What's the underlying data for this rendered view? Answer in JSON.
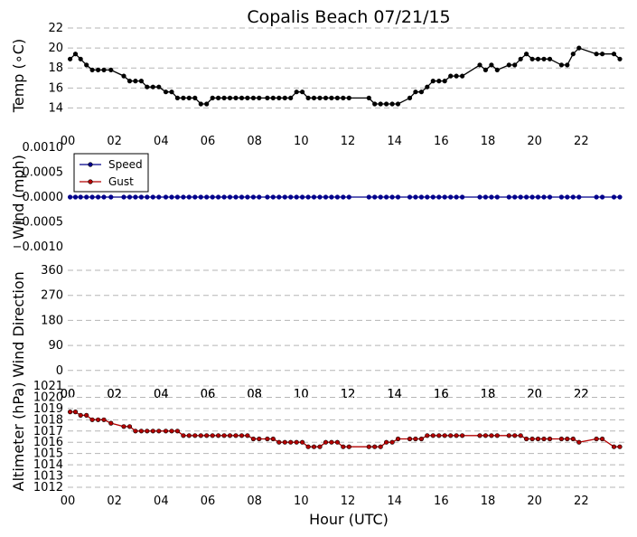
{
  "title": "Copalis Beach 07/21/15",
  "xlabel": "Hour (UTC)",
  "x_ticks": [
    "00",
    "02",
    "04",
    "06",
    "08",
    "10",
    "12",
    "14",
    "16",
    "18",
    "20",
    "22"
  ],
  "chart_data": [
    {
      "type": "line",
      "name": "temperature",
      "ylabel": "Temp (∘C)",
      "xlim": [
        0,
        24
      ],
      "ylim": [
        12.5,
        22
      ],
      "y_ticks": [
        "14",
        "16",
        "18",
        "20",
        "22"
      ],
      "grid": true,
      "series": [
        {
          "color": "#000000",
          "points": [
            [
              0.1,
              18.9
            ],
            [
              0.33,
              19.4
            ],
            [
              0.55,
              18.9
            ],
            [
              0.8,
              18.3
            ],
            [
              1.05,
              17.8
            ],
            [
              1.3,
              17.8
            ],
            [
              1.55,
              17.8
            ],
            [
              1.85,
              17.8
            ],
            [
              2.4,
              17.2
            ],
            [
              2.65,
              16.7
            ],
            [
              2.9,
              16.7
            ],
            [
              3.15,
              16.7
            ],
            [
              3.4,
              16.1
            ],
            [
              3.65,
              16.1
            ],
            [
              3.9,
              16.1
            ],
            [
              4.2,
              15.6
            ],
            [
              4.45,
              15.6
            ],
            [
              4.7,
              15.0
            ],
            [
              4.95,
              15.0
            ],
            [
              5.2,
              15.0
            ],
            [
              5.45,
              15.0
            ],
            [
              5.7,
              14.4
            ],
            [
              5.95,
              14.4
            ],
            [
              6.2,
              15.0
            ],
            [
              6.45,
              15.0
            ],
            [
              6.7,
              15.0
            ],
            [
              6.95,
              15.0
            ],
            [
              7.2,
              15.0
            ],
            [
              7.45,
              15.0
            ],
            [
              7.7,
              15.0
            ],
            [
              7.95,
              15.0
            ],
            [
              8.2,
              15.0
            ],
            [
              8.55,
              15.0
            ],
            [
              8.8,
              15.0
            ],
            [
              9.05,
              15.0
            ],
            [
              9.3,
              15.0
            ],
            [
              9.55,
              15.0
            ],
            [
              9.8,
              15.6
            ],
            [
              10.05,
              15.6
            ],
            [
              10.3,
              15.0
            ],
            [
              10.55,
              15.0
            ],
            [
              10.8,
              15.0
            ],
            [
              11.05,
              15.0
            ],
            [
              11.3,
              15.0
            ],
            [
              11.55,
              15.0
            ],
            [
              11.8,
              15.0
            ],
            [
              12.05,
              15.0
            ],
            [
              12.9,
              15.0
            ],
            [
              13.15,
              14.4
            ],
            [
              13.4,
              14.4
            ],
            [
              13.65,
              14.4
            ],
            [
              13.9,
              14.4
            ],
            [
              14.15,
              14.4
            ],
            [
              14.65,
              15.0
            ],
            [
              14.9,
              15.6
            ],
            [
              15.15,
              15.6
            ],
            [
              15.4,
              16.1
            ],
            [
              15.65,
              16.7
            ],
            [
              15.9,
              16.7
            ],
            [
              16.15,
              16.7
            ],
            [
              16.4,
              17.2
            ],
            [
              16.65,
              17.2
            ],
            [
              16.9,
              17.2
            ],
            [
              17.65,
              18.3
            ],
            [
              17.9,
              17.8
            ],
            [
              18.15,
              18.3
            ],
            [
              18.4,
              17.8
            ],
            [
              18.9,
              18.3
            ],
            [
              19.15,
              18.3
            ],
            [
              19.4,
              18.9
            ],
            [
              19.65,
              19.4
            ],
            [
              19.9,
              18.9
            ],
            [
              20.15,
              18.9
            ],
            [
              20.4,
              18.9
            ],
            [
              20.65,
              18.9
            ],
            [
              21.15,
              18.3
            ],
            [
              21.4,
              18.3
            ],
            [
              21.65,
              19.4
            ],
            [
              21.9,
              20.0
            ],
            [
              22.65,
              19.4
            ],
            [
              22.9,
              19.4
            ],
            [
              23.4,
              19.4
            ],
            [
              23.65,
              18.9
            ]
          ]
        }
      ]
    },
    {
      "type": "line",
      "name": "wind",
      "ylabel": "Wind (mph)",
      "xlim": [
        0,
        24
      ],
      "ylim": [
        -0.001,
        0.001
      ],
      "y_ticks": [
        "−0.0010",
        "−0.0005",
        "0.0000",
        "0.0005",
        "0.0010"
      ],
      "grid": false,
      "legend": {
        "placement": "top-left",
        "entries": [
          "Speed",
          "Gust"
        ]
      },
      "series": [
        {
          "name": "Speed",
          "color": "#00008b",
          "x": [
            0.1,
            0.33,
            0.55,
            0.8,
            1.05,
            1.3,
            1.55,
            1.85,
            2.4,
            2.65,
            2.9,
            3.15,
            3.4,
            3.65,
            3.9,
            4.2,
            4.45,
            4.7,
            4.95,
            5.2,
            5.45,
            5.7,
            5.95,
            6.2,
            6.45,
            6.7,
            6.95,
            7.2,
            7.45,
            7.7,
            7.95,
            8.2,
            8.55,
            8.8,
            9.05,
            9.3,
            9.55,
            9.8,
            10.05,
            10.3,
            10.55,
            10.8,
            11.05,
            11.3,
            11.55,
            11.8,
            12.05,
            12.9,
            13.15,
            13.4,
            13.65,
            13.9,
            14.15,
            14.65,
            14.9,
            15.15,
            15.4,
            15.65,
            15.9,
            16.15,
            16.4,
            16.65,
            16.9,
            17.65,
            17.9,
            18.15,
            18.4,
            18.9,
            19.15,
            19.4,
            19.65,
            19.9,
            20.15,
            20.4,
            20.65,
            21.15,
            21.4,
            21.65,
            21.9,
            22.65,
            22.9,
            23.4,
            23.65
          ],
          "value": 0
        },
        {
          "name": "Gust",
          "color": "#b40000",
          "x": [],
          "value": 0
        }
      ]
    },
    {
      "type": "scatter",
      "name": "wind-direction",
      "ylabel": "Wind Direction",
      "xlim": [
        0,
        24
      ],
      "ylim": [
        -30,
        360
      ],
      "y_ticks": [
        "0",
        "90",
        "180",
        "270",
        "360"
      ],
      "grid": true,
      "series": []
    },
    {
      "type": "line",
      "name": "altimeter",
      "ylabel": "Altimeter (hPa)",
      "xlim": [
        0,
        24
      ],
      "ylim": [
        1012,
        1021
      ],
      "y_ticks": [
        "1012",
        "1013",
        "1014",
        "1015",
        "1016",
        "1017",
        "1018",
        "1019",
        "1020",
        "1021"
      ],
      "grid": true,
      "series": [
        {
          "color": "#b40000",
          "points": [
            [
              0.1,
              1018.7
            ],
            [
              0.33,
              1018.7
            ],
            [
              0.55,
              1018.4
            ],
            [
              0.8,
              1018.4
            ],
            [
              1.05,
              1018.0
            ],
            [
              1.3,
              1018.0
            ],
            [
              1.55,
              1018.0
            ],
            [
              1.85,
              1017.7
            ],
            [
              2.4,
              1017.4
            ],
            [
              2.65,
              1017.4
            ],
            [
              2.9,
              1017.0
            ],
            [
              3.15,
              1017.0
            ],
            [
              3.4,
              1017.0
            ],
            [
              3.65,
              1017.0
            ],
            [
              3.9,
              1017.0
            ],
            [
              4.2,
              1017.0
            ],
            [
              4.45,
              1017.0
            ],
            [
              4.7,
              1017.0
            ],
            [
              4.95,
              1016.6
            ],
            [
              5.2,
              1016.6
            ],
            [
              5.45,
              1016.6
            ],
            [
              5.7,
              1016.6
            ],
            [
              5.95,
              1016.6
            ],
            [
              6.2,
              1016.6
            ],
            [
              6.45,
              1016.6
            ],
            [
              6.7,
              1016.6
            ],
            [
              6.95,
              1016.6
            ],
            [
              7.2,
              1016.6
            ],
            [
              7.45,
              1016.6
            ],
            [
              7.7,
              1016.6
            ],
            [
              7.95,
              1016.3
            ],
            [
              8.2,
              1016.3
            ],
            [
              8.55,
              1016.3
            ],
            [
              8.8,
              1016.3
            ],
            [
              9.05,
              1016.0
            ],
            [
              9.3,
              1016.0
            ],
            [
              9.55,
              1016.0
            ],
            [
              9.8,
              1016.0
            ],
            [
              10.05,
              1016.0
            ],
            [
              10.3,
              1015.6
            ],
            [
              10.55,
              1015.6
            ],
            [
              10.8,
              1015.6
            ],
            [
              11.05,
              1016.0
            ],
            [
              11.3,
              1016.0
            ],
            [
              11.55,
              1016.0
            ],
            [
              11.8,
              1015.6
            ],
            [
              12.05,
              1015.6
            ],
            [
              12.9,
              1015.6
            ],
            [
              13.15,
              1015.6
            ],
            [
              13.4,
              1015.6
            ],
            [
              13.65,
              1016.0
            ],
            [
              13.9,
              1016.0
            ],
            [
              14.15,
              1016.3
            ],
            [
              14.65,
              1016.3
            ],
            [
              14.9,
              1016.3
            ],
            [
              15.15,
              1016.3
            ],
            [
              15.4,
              1016.6
            ],
            [
              15.65,
              1016.6
            ],
            [
              15.9,
              1016.6
            ],
            [
              16.15,
              1016.6
            ],
            [
              16.4,
              1016.6
            ],
            [
              16.65,
              1016.6
            ],
            [
              16.9,
              1016.6
            ],
            [
              17.65,
              1016.6
            ],
            [
              17.9,
              1016.6
            ],
            [
              18.15,
              1016.6
            ],
            [
              18.4,
              1016.6
            ],
            [
              18.9,
              1016.6
            ],
            [
              19.15,
              1016.6
            ],
            [
              19.4,
              1016.6
            ],
            [
              19.65,
              1016.3
            ],
            [
              19.9,
              1016.3
            ],
            [
              20.15,
              1016.3
            ],
            [
              20.4,
              1016.3
            ],
            [
              20.65,
              1016.3
            ],
            [
              21.15,
              1016.3
            ],
            [
              21.4,
              1016.3
            ],
            [
              21.65,
              1016.3
            ],
            [
              21.9,
              1016.0
            ],
            [
              22.65,
              1016.3
            ],
            [
              22.9,
              1016.3
            ],
            [
              23.4,
              1015.6
            ],
            [
              23.65,
              1015.6
            ]
          ]
        }
      ]
    }
  ]
}
